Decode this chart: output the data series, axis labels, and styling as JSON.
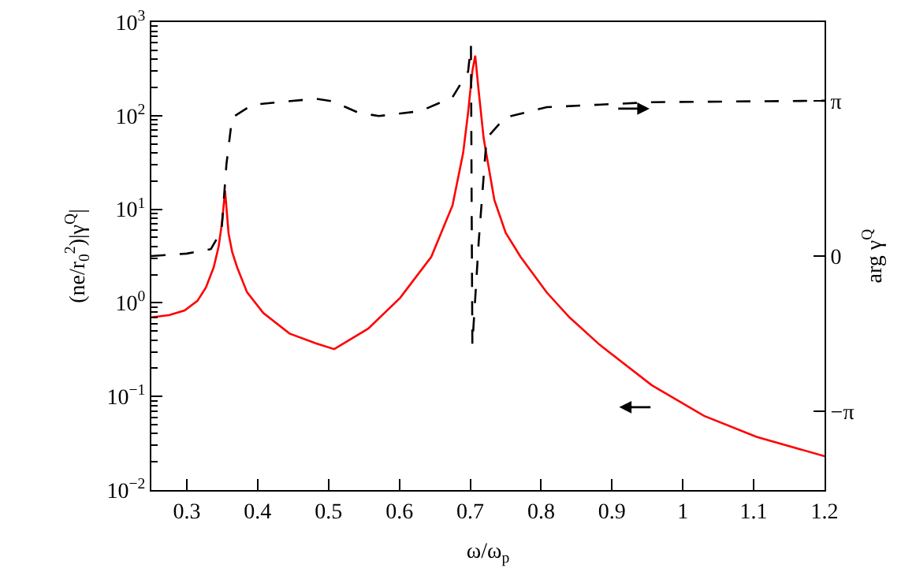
{
  "chart_data": {
    "type": "line",
    "xlabel": "ω/ω$_{p}$",
    "ylabel": "(ne/r$_{0}$$^{2}$)|γ$^{Q}$|",
    "y2label": "arg γ$^{Q}$",
    "xlim": [
      0.25,
      1.2
    ],
    "xticks": [
      0.3,
      0.4,
      0.5,
      0.6,
      0.7,
      0.8,
      0.9,
      1,
      1.1,
      1.2
    ],
    "ylim": [
      0.01,
      1000
    ],
    "log": "y",
    "yticks": [
      {
        "value": 0.01,
        "label": "10$^{−2}$"
      },
      {
        "value": 0.1,
        "label": "10$^{−1}$"
      },
      {
        "value": 1,
        "label": "10$^{0}$"
      },
      {
        "value": 10,
        "label": "10$^{1}$"
      },
      {
        "value": 100,
        "label": "10$^{2}$"
      },
      {
        "value": 1000,
        "label": "10$^{3}$"
      },
      {
        "value": 0.02,
        "label": null
      },
      {
        "value": 0.03,
        "label": null
      },
      {
        "value": 0.04,
        "label": null
      },
      {
        "value": 0.05,
        "label": null
      },
      {
        "value": 0.06,
        "label": null
      },
      {
        "value": 0.07,
        "label": null
      },
      {
        "value": 0.08,
        "label": null
      },
      {
        "value": 0.09,
        "label": null
      },
      {
        "value": 0.2,
        "label": null
      },
      {
        "value": 0.3,
        "label": null
      },
      {
        "value": 0.4,
        "label": null
      },
      {
        "value": 0.5,
        "label": null
      },
      {
        "value": 0.6,
        "label": null
      },
      {
        "value": 0.7,
        "label": null
      },
      {
        "value": 0.8,
        "label": null
      },
      {
        "value": 0.9,
        "label": null
      },
      {
        "value": 2,
        "label": null
      },
      {
        "value": 3,
        "label": null
      },
      {
        "value": 4,
        "label": null
      },
      {
        "value": 5,
        "label": null
      },
      {
        "value": 6,
        "label": null
      },
      {
        "value": 7,
        "label": null
      },
      {
        "value": 8,
        "label": null
      },
      {
        "value": 9,
        "label": null
      },
      {
        "value": 20,
        "label": null
      },
      {
        "value": 30,
        "label": null
      },
      {
        "value": 40,
        "label": null
      },
      {
        "value": 50,
        "label": null
      },
      {
        "value": 60,
        "label": null
      },
      {
        "value": 70,
        "label": null
      },
      {
        "value": 80,
        "label": null
      },
      {
        "value": 90,
        "label": null
      },
      {
        "value": 200,
        "label": null
      },
      {
        "value": 300,
        "label": null
      },
      {
        "value": 400,
        "label": null
      },
      {
        "value": 500,
        "label": null
      },
      {
        "value": 600,
        "label": null
      },
      {
        "value": 700,
        "label": null
      },
      {
        "value": 800,
        "label": null
      },
      {
        "value": 900,
        "label": null
      }
    ],
    "y2lim": [
      -4.73,
      4.73
    ],
    "y2ticks": [
      {
        "value": -3.1416,
        "label": "−π"
      },
      {
        "value": 0,
        "label": "0"
      },
      {
        "value": 3.1416,
        "label": "π"
      }
    ],
    "marker": "none",
    "series": [
      {
        "color": "#ff0000",
        "line_style": "solid",
        "x": [
          0.25,
          0.275,
          0.297,
          0.315,
          0.327,
          0.338,
          0.345,
          0.35,
          0.354,
          0.359,
          0.364,
          0.371,
          0.385,
          0.408,
          0.445,
          0.482,
          0.508,
          0.556,
          0.601,
          0.645,
          0.675,
          0.69,
          0.697,
          0.703,
          0.707,
          0.712,
          0.719,
          0.734,
          0.75,
          0.771,
          0.808,
          0.84,
          0.882,
          0.956,
          1.03,
          1.104,
          1.2
        ],
        "values": [
          0.7,
          0.74,
          0.83,
          1.05,
          1.46,
          2.4,
          4.0,
          7.5,
          15.8,
          5.5,
          3.5,
          2.4,
          1.3,
          0.78,
          0.47,
          0.37,
          0.32,
          0.53,
          1.13,
          3.1,
          11,
          40,
          108,
          300,
          437,
          180,
          57,
          12.6,
          5.6,
          3.1,
          1.29,
          0.7,
          0.36,
          0.132,
          0.062,
          0.037,
          0.023
        ]
      },
      {
        "color": "#000000",
        "line_style": "dashed",
        "axis": "y2",
        "x": [
          0.25,
          0.3,
          0.334,
          0.349,
          0.356,
          0.364,
          0.393,
          0.482,
          0.505,
          0.542,
          0.571,
          0.63,
          0.675,
          0.697,
          0.701,
          0.702,
          0.703,
          0.712,
          0.723,
          0.749,
          0.808,
          0.956,
          1.2
        ],
        "values": [
          0.0,
          0.05,
          0.14,
          0.51,
          1.86,
          2.8,
          3.06,
          3.18,
          3.13,
          2.9,
          2.83,
          2.93,
          3.21,
          3.73,
          4.26,
          1.0,
          -1.79,
          0.3,
          2.38,
          2.8,
          3.01,
          3.11,
          3.14
        ]
      }
    ]
  }
}
